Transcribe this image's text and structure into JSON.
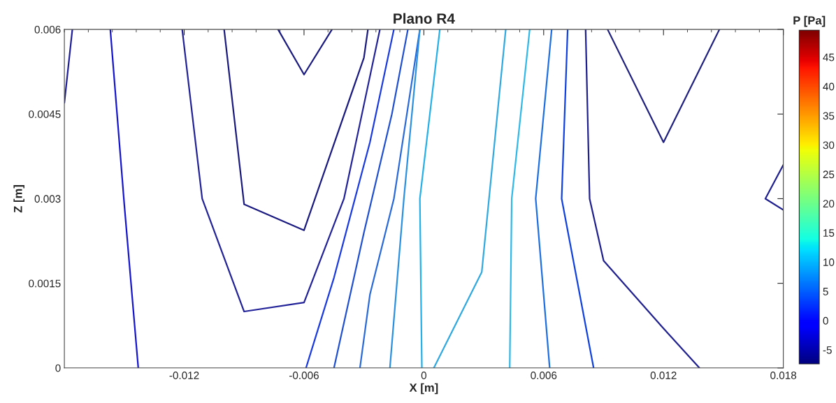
{
  "chart_data": {
    "type": "line",
    "title": "Plano R4",
    "xlabel": "X [m]",
    "ylabel": "Z [m]",
    "clabel": "P [Pa]",
    "xlim": [
      -0.018,
      0.018
    ],
    "xticks": [
      -0.012,
      -0.006,
      0,
      0.006,
      0.012,
      0.018
    ],
    "ylim": [
      0,
      0.006
    ],
    "yticks": [
      0,
      0.0015,
      0.003,
      0.0045,
      0.006
    ],
    "clim": [
      -7.4,
      49.6
    ],
    "cticks": [
      -5,
      0,
      5,
      10,
      15,
      20,
      25,
      30,
      35,
      40,
      45
    ],
    "legend": false,
    "grid": false,
    "marker": "none",
    "line_style": "solid",
    "series": [
      {
        "color": "#1f1f99",
        "x": [
          -0.018,
          -0.0176
        ],
        "values": [
          0.0047,
          0.006
        ]
      },
      {
        "color": "#1515d0",
        "x": [
          -0.0157,
          -0.015,
          -0.0143
        ],
        "values": [
          0.006,
          0.0029,
          0
        ]
      },
      {
        "color": "#222299",
        "x": [
          -0.0121,
          -0.0111,
          -0.009,
          -0.006,
          -0.004,
          -0.0022
        ],
        "values": [
          0.006,
          0.003,
          0.001,
          0.00116,
          0.003,
          0.006
        ]
      },
      {
        "color": "#1a1a80",
        "x": [
          -0.01,
          -0.009,
          -0.006,
          -0.003,
          -0.0028
        ],
        "values": [
          0.006,
          0.0029,
          0.00244,
          0.0055,
          0.006
        ]
      },
      {
        "color": "#1a1a80",
        "x": [
          -0.0073,
          -0.006,
          -0.0046
        ],
        "values": [
          0.006,
          0.0052,
          0.006
        ]
      },
      {
        "color": "#1a3ae0",
        "x": [
          -0.0059,
          -0.0045,
          -0.0027,
          -0.0015
        ],
        "values": [
          0,
          0.0016,
          0.004,
          0.006
        ]
      },
      {
        "color": "#2050d0",
        "x": [
          -0.0045,
          -0.003,
          -0.0016,
          -0.0008
        ],
        "values": [
          0,
          0.0024,
          0.0045,
          0.006
        ]
      },
      {
        "color": "#2a6ad8",
        "x": [
          -0.0032,
          -0.0027,
          -0.0015,
          -0.0002
        ],
        "values": [
          0,
          0.0013,
          0.003,
          0.006
        ]
      },
      {
        "color": "#2a90e0",
        "x": [
          -0.0017,
          -0.001,
          -0.0002
        ],
        "values": [
          0,
          0.003,
          0.006
        ]
      },
      {
        "color": "#25b0e8",
        "x": [
          -0.0001,
          -0.0002,
          0.0008
        ],
        "values": [
          0,
          0.003,
          0.006
        ]
      },
      {
        "color": "#30a8e0",
        "x": [
          0.0005,
          0.0029,
          0.0041
        ],
        "values": [
          0,
          0.0017,
          0.006
        ]
      },
      {
        "color": "#30b8e8",
        "x": [
          0.0043,
          0.0044,
          0.0053
        ],
        "values": [
          0,
          0.003,
          0.006
        ]
      },
      {
        "color": "#1e70e0",
        "x": [
          0.0063,
          0.0056,
          0.0064
        ],
        "values": [
          0,
          0.003,
          0.006
        ]
      },
      {
        "color": "#1040e0",
        "x": [
          0.0085,
          0.0069,
          0.0072
        ],
        "values": [
          0,
          0.003,
          0.006
        ]
      },
      {
        "color": "#202090",
        "x": [
          0.0138,
          0.012,
          0.009,
          0.0083,
          0.0081
        ],
        "values": [
          0,
          0.0007,
          0.0019,
          0.003,
          0.006
        ]
      },
      {
        "color": "#202080",
        "x": [
          0.0092,
          0.012,
          0.0148
        ],
        "values": [
          0.006,
          0.004,
          0.006
        ]
      },
      {
        "color": "#202090",
        "x": [
          0.018,
          0.0171,
          0.018
        ],
        "values": [
          0.0036,
          0.003,
          0.0028
        ]
      }
    ]
  }
}
